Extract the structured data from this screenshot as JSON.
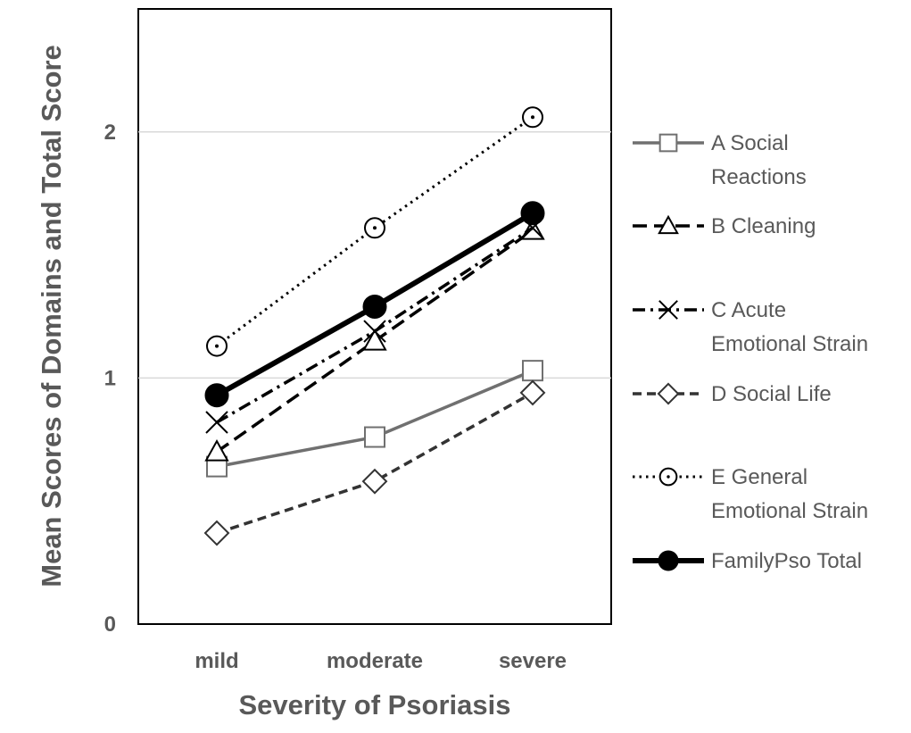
{
  "chart_data": {
    "type": "line",
    "title": "",
    "xlabel": "Severity of Psoriasis",
    "ylabel": "Mean Scores of Domains and Total Score",
    "categories": [
      "mild",
      "moderate",
      "severe"
    ],
    "ylim": [
      0,
      2.5
    ],
    "yticks": [
      0,
      1,
      2
    ],
    "grid": "horizontal",
    "legend_position": "right",
    "series": [
      {
        "name": "A Social Reactions",
        "legend_lines": [
          "A Social",
          "Reactions"
        ],
        "values": [
          0.64,
          0.76,
          1.03
        ],
        "color": "#707070",
        "dash": "solid",
        "marker": "square"
      },
      {
        "name": "B Cleaning",
        "legend_lines": [
          "B Cleaning"
        ],
        "values": [
          0.7,
          1.15,
          1.6
        ],
        "color": "#000000",
        "dash": "long-dash",
        "marker": "triangle"
      },
      {
        "name": "C Acute Emotional Strain",
        "legend_lines": [
          "C Acute",
          "Emotional Strain"
        ],
        "values": [
          0.82,
          1.19,
          1.61
        ],
        "color": "#000000",
        "dash": "dash-dot",
        "marker": "x"
      },
      {
        "name": "D Social Life",
        "legend_lines": [
          "D Social Life"
        ],
        "values": [
          0.37,
          0.58,
          0.94
        ],
        "color": "#333333",
        "dash": "dash",
        "marker": "diamond"
      },
      {
        "name": "E General Emotional Strain",
        "legend_lines": [
          "E General",
          "Emotional Strain"
        ],
        "values": [
          1.13,
          1.61,
          2.06
        ],
        "color": "#000000",
        "dash": "dot",
        "marker": "circle-dot"
      },
      {
        "name": "FamilyPso Total",
        "legend_lines": [
          "FamilyPso Total"
        ],
        "values": [
          0.93,
          1.29,
          1.67
        ],
        "color": "#000000",
        "dash": "thick-solid",
        "marker": "filled-circle"
      }
    ]
  }
}
